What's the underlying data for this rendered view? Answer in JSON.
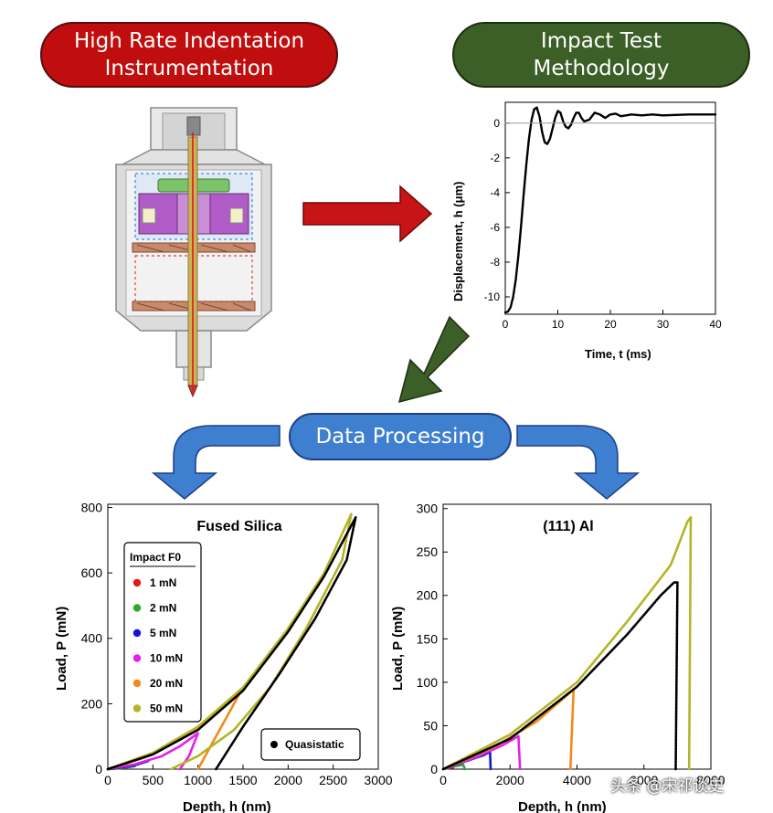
{
  "pills": {
    "instrumentation": [
      "High Rate Indentation",
      "Instrumentation"
    ],
    "methodology": [
      "Impact Test",
      "Methodology"
    ],
    "processing": "Data Processing"
  },
  "colors": {
    "red_pill": "#c00d0d",
    "green_pill": "#3c5e27",
    "blue_pill": "#3e7fd0",
    "series": [
      "#e01a1a",
      "#2fa82f",
      "#1515d8",
      "#e81fe8",
      "#f28a1a",
      "#b4b428",
      "#000000"
    ]
  },
  "icons": [
    "indenter-cross-section-icon",
    "right-arrow-icon",
    "down-left-arrow-icon",
    "curved-arrow-left-icon",
    "curved-arrow-right-icon"
  ],
  "watermark": "头条 @宋祁谈史",
  "chart_data": [
    {
      "type": "line",
      "xlabel": "Time, t (ms)",
      "ylabel": "Displacement, h (μm)",
      "xlim": [
        0,
        40
      ],
      "ylim": [
        -11,
        1.2
      ],
      "xticks": [
        0,
        10,
        20,
        30,
        40
      ],
      "yticks": [
        0,
        -2,
        -4,
        -6,
        -8,
        -10
      ],
      "grid": false,
      "series": [
        {
          "color": "#000000",
          "x": [
            0,
            0.5,
            1,
            1.5,
            2,
            2.5,
            3,
            3.5,
            4,
            4.5,
            5,
            5.5,
            6,
            6.5,
            7,
            7.5,
            8,
            8.5,
            9,
            9.5,
            10,
            10.5,
            11,
            11.5,
            12,
            12.5,
            13,
            13.5,
            14,
            14.5,
            15,
            16,
            17,
            18,
            19,
            20,
            21,
            22,
            23,
            24,
            26,
            28,
            30,
            35,
            40
          ],
          "y": [
            -10.9,
            -10.85,
            -10.6,
            -10.0,
            -9.0,
            -7.6,
            -5.9,
            -4.1,
            -2.4,
            -0.9,
            0.2,
            0.8,
            0.9,
            0.4,
            -0.5,
            -1.1,
            -1.2,
            -0.9,
            -0.3,
            0.3,
            0.7,
            0.6,
            0.1,
            -0.2,
            -0.3,
            -0.1,
            0.3,
            0.6,
            0.6,
            0.3,
            0.1,
            0.2,
            0.6,
            0.5,
            0.3,
            0.5,
            0.55,
            0.4,
            0.45,
            0.5,
            0.45,
            0.5,
            0.45,
            0.5,
            0.5
          ]
        },
        {
          "color": "#999999",
          "x": [
            0,
            40
          ],
          "y": [
            0,
            0
          ]
        }
      ]
    },
    {
      "type": "line",
      "title": "Fused Silica",
      "xlabel": "Depth, h (nm)",
      "ylabel": "Load, P (mN)",
      "xlim": [
        0,
        3000
      ],
      "ylim": [
        0,
        810
      ],
      "xticks": [
        0,
        500,
        1000,
        1500,
        2000,
        2500,
        3000
      ],
      "yticks": [
        0,
        200,
        400,
        600,
        800
      ],
      "legend_title": "Impact F0",
      "legend_placement": "top-left",
      "series": [
        {
          "name": "1 mN",
          "color": "#e01a1a",
          "x": [
            0,
            40,
            80,
            120,
            160
          ],
          "y": [
            0,
            0.5,
            1.5,
            3,
            5
          ]
        },
        {
          "name": "2 mN",
          "color": "#2fa82f",
          "x": [
            0,
            100,
            200,
            300
          ],
          "y": [
            0,
            2,
            5,
            9
          ]
        },
        {
          "name": "5 mN",
          "color": "#1515d8",
          "x": [
            0,
            150,
            300,
            450
          ],
          "y": [
            0,
            5,
            12,
            25
          ]
        },
        {
          "name": "10 mN",
          "color": "#e81fe8",
          "x": [
            0,
            300,
            600,
            800,
            1000,
            900,
            800
          ],
          "y": [
            0,
            15,
            40,
            70,
            110,
            40,
            0
          ]
        },
        {
          "name": "20 mN",
          "color": "#f28a1a",
          "x": [
            0,
            400,
            800,
            1100,
            1300,
            1480,
            1200,
            1000
          ],
          "y": [
            0,
            35,
            90,
            150,
            200,
            240,
            100,
            0
          ]
        },
        {
          "name": "50 mN",
          "color": "#b4b428",
          "x": [
            0,
            500,
            1000,
            1500,
            2000,
            2400,
            2700,
            2600,
            2200,
            1800,
            1400,
            1000,
            700
          ],
          "y": [
            0,
            50,
            130,
            250,
            430,
            600,
            780,
            640,
            430,
            250,
            120,
            40,
            0
          ]
        },
        {
          "name": "Quasistatic",
          "color": "#000000",
          "x": [
            0,
            500,
            1000,
            1500,
            2000,
            2400,
            2750,
            2650,
            2300,
            1900,
            1500,
            1200
          ],
          "y": [
            0,
            45,
            120,
            240,
            420,
            590,
            770,
            640,
            460,
            290,
            130,
            0
          ]
        }
      ]
    },
    {
      "type": "line",
      "title": "(111) Al",
      "xlabel": "Depth, h (nm)",
      "ylabel": "Load, P (mN)",
      "xlim": [
        0,
        8000
      ],
      "ylim": [
        0,
        305
      ],
      "xticks": [
        0,
        2000,
        4000,
        6000,
        8000
      ],
      "yticks": [
        0,
        50,
        100,
        150,
        200,
        250,
        300
      ],
      "legend_placement": "none",
      "series": [
        {
          "name": "1 mN",
          "color": "#e01a1a",
          "x": [
            0,
            150,
            300
          ],
          "y": [
            0,
            1,
            2
          ]
        },
        {
          "name": "2 mN",
          "color": "#2fa82f",
          "x": [
            0,
            300,
            600,
            650
          ],
          "y": [
            0,
            3,
            5,
            0
          ]
        },
        {
          "name": "5 mN",
          "color": "#1515d8",
          "x": [
            0,
            600,
            1200,
            1400,
            1420
          ],
          "y": [
            0,
            8,
            16,
            20,
            0
          ]
        },
        {
          "name": "10 mN",
          "color": "#e81fe8",
          "x": [
            0,
            1000,
            1800,
            2250,
            2300
          ],
          "y": [
            0,
            14,
            28,
            38,
            0
          ]
        },
        {
          "name": "20 mN",
          "color": "#f28a1a",
          "x": [
            0,
            1500,
            2800,
            3700,
            3900,
            3800
          ],
          "y": [
            0,
            25,
            55,
            85,
            92,
            0
          ]
        },
        {
          "name": "50 mN",
          "color": "#b4b428",
          "x": [
            0,
            2000,
            4000,
            5500,
            6800,
            7300,
            7400,
            7350
          ],
          "y": [
            0,
            40,
            100,
            170,
            235,
            285,
            290,
            0
          ]
        },
        {
          "name": "Quasistatic",
          "color": "#000000",
          "x": [
            0,
            2000,
            4000,
            5500,
            6500,
            6900,
            7000,
            6950
          ],
          "y": [
            0,
            35,
            95,
            155,
            200,
            215,
            215,
            0
          ]
        }
      ]
    }
  ],
  "legend_quasistatic": "Quasistatic"
}
